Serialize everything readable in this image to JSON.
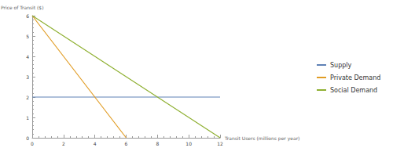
{
  "chart_data": {
    "type": "line",
    "x_label": "Transit Users (millions per year)",
    "y_label": "Price of Transit ($)",
    "x": [
      0,
      6,
      12
    ],
    "series": [
      {
        "name": "Supply",
        "color": "#5e81b5",
        "values": [
          2,
          2,
          2
        ]
      },
      {
        "name": "Private Demand",
        "color": "#e19c24",
        "values": [
          6,
          0,
          null
        ]
      },
      {
        "name": "Social Demand",
        "color": "#8fb032",
        "values": [
          6,
          3,
          0
        ]
      }
    ],
    "xlim": [
      0,
      12
    ],
    "xticks": [
      0,
      2,
      4,
      6,
      8,
      10,
      12
    ],
    "ylim": [
      0,
      6
    ],
    "yticks": [
      0,
      1,
      2,
      3,
      4,
      5,
      6
    ],
    "grid": false,
    "legend": "right"
  }
}
